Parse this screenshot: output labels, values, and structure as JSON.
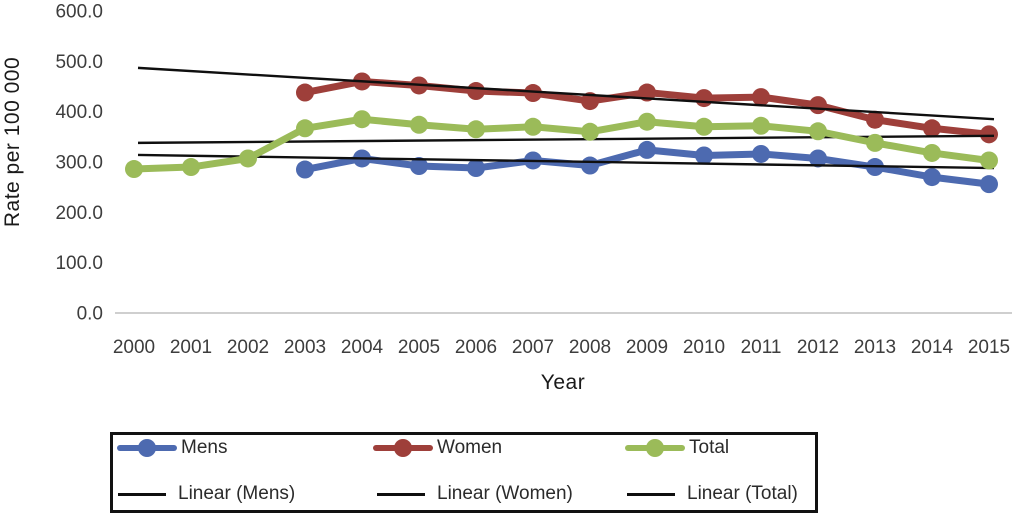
{
  "chart_data": {
    "type": "line",
    "title": "",
    "xlabel": "Year",
    "ylabel": "Rate per 100 000",
    "ylim": [
      0,
      600
    ],
    "grid": false,
    "legend_position": "bottom",
    "axis_line_color": "#bfbfbf",
    "tick_text_color": "#3d3d3d",
    "yticks": [
      {
        "v": 0,
        "label": "0.0"
      },
      {
        "v": 100,
        "label": "100.0"
      },
      {
        "v": 200,
        "label": "200.0"
      },
      {
        "v": 300,
        "label": "300.0"
      },
      {
        "v": 400,
        "label": "400.0"
      },
      {
        "v": 500,
        "label": "500.0"
      },
      {
        "v": 600,
        "label": "600.0"
      }
    ],
    "years": [
      2000,
      2001,
      2002,
      2003,
      2004,
      2005,
      2006,
      2007,
      2008,
      2009,
      2010,
      2011,
      2012,
      2013,
      2014,
      2015
    ],
    "series": [
      {
        "name": "Mens",
        "color": "#4d6ab0",
        "values": [
          null,
          null,
          null,
          285,
          307,
          292,
          288,
          303,
          293,
          324,
          313,
          316,
          307,
          290,
          270,
          256
        ]
      },
      {
        "name": "Women",
        "color": "#9e3f3a",
        "values": [
          null,
          null,
          null,
          438,
          460,
          452,
          441,
          437,
          421,
          438,
          427,
          429,
          413,
          384,
          367,
          355
        ]
      },
      {
        "name": "Total",
        "color": "#9bbb59",
        "values": [
          286,
          290,
          307,
          367,
          385,
          374,
          365,
          370,
          360,
          380,
          370,
          372,
          361,
          338,
          318,
          303
        ]
      }
    ],
    "trendlines": [
      {
        "name": "Linear (Mens)",
        "for": "Mens",
        "color": "#0f0f0f",
        "start_value": 314,
        "end_value": 288
      },
      {
        "name": "Linear (Women)",
        "for": "Women",
        "color": "#0f0f0f",
        "start_value": 487,
        "end_value": 385
      },
      {
        "name": "Linear (Total)",
        "for": "Total",
        "color": "#0f0f0f",
        "start_value": 338,
        "end_value": 352
      }
    ]
  }
}
